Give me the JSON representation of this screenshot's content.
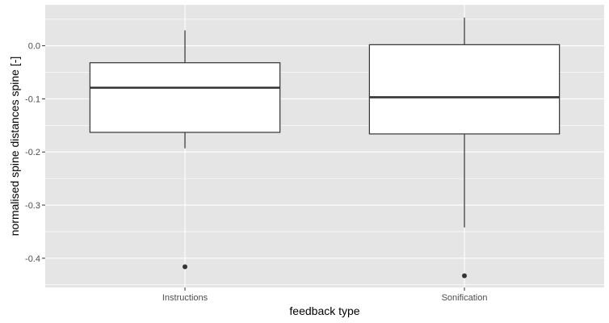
{
  "chart_data": {
    "type": "boxplot",
    "title": "",
    "xlabel": "feedback type",
    "ylabel": "normalised spine distances spine [-]",
    "categories": [
      "Instructions",
      "Sonification"
    ],
    "boxes": [
      {
        "category": "Instructions",
        "whisker_low": -0.193,
        "q1": -0.163,
        "median": -0.079,
        "q3": -0.032,
        "whisker_high": 0.029,
        "outliers": [
          -0.416
        ]
      },
      {
        "category": "Sonification",
        "whisker_low": -0.342,
        "q1": -0.166,
        "median": -0.097,
        "q3": 0.002,
        "whisker_high": 0.053,
        "outliers": [
          -0.433
        ]
      }
    ],
    "ylim": [
      -0.455,
      0.077
    ],
    "yticks": [
      0.0,
      -0.1,
      -0.2,
      -0.3,
      -0.4
    ],
    "ytick_labels": [
      "0.0",
      "-0.1",
      "-0.2",
      "-0.3",
      "-0.4"
    ],
    "grid": true,
    "legend": "none",
    "colors": {
      "panel": "#e5e5e5",
      "grid_major": "#ffffff",
      "box_fill": "#ffffff",
      "box_line": "#333333",
      "outlier": "#333333"
    }
  }
}
